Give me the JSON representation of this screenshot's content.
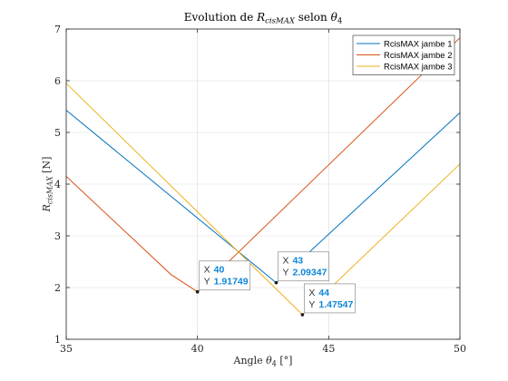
{
  "chart_data": {
    "type": "line",
    "title": "Evolution de R_cisMAX selon θ4",
    "title_parts": {
      "pre": "Evolution de ",
      "var": "R",
      "sub": "cisMAX",
      "mid": " selon ",
      "theta": "θ",
      "theta_sub": "4"
    },
    "xlabel": "Angle θ4 [°]",
    "xlabel_parts": {
      "pre": "Angle ",
      "theta": "θ",
      "sub": "4",
      "post": " [°]"
    },
    "ylabel": "R_cisMAX [N]",
    "ylabel_parts": {
      "var": "R",
      "sub": "cisMAX",
      "post": " [N]"
    },
    "xlim": [
      35,
      50
    ],
    "ylim": [
      1,
      7
    ],
    "xticks": [
      35,
      40,
      45,
      50
    ],
    "yticks": [
      1,
      2,
      3,
      4,
      5,
      6,
      7
    ],
    "grid": true,
    "legend_position": "top-right",
    "series": [
      {
        "name": "RcisMAX jambe 1",
        "color": "#0072BD",
        "x": [
          35,
          43,
          50
        ],
        "y": [
          5.43,
          2.09347,
          5.38
        ]
      },
      {
        "name": "RcisMAX jambe 2",
        "color": "#D95319",
        "x": [
          35,
          39,
          40,
          50
        ],
        "y": [
          4.15,
          2.25,
          1.91749,
          6.83
        ]
      },
      {
        "name": "RcisMAX jambe 3",
        "color": "#EDB120",
        "x": [
          35,
          44,
          50
        ],
        "y": [
          5.95,
          1.47547,
          4.39
        ]
      }
    ],
    "datatips": [
      {
        "x_label": "X",
        "y_label": "Y",
        "x": 40,
        "y": 1.91749,
        "x_text": "40",
        "y_text": "1.91749"
      },
      {
        "x_label": "X",
        "y_label": "Y",
        "x": 43,
        "y": 2.09347,
        "x_text": "43",
        "y_text": "2.09347"
      },
      {
        "x_label": "X",
        "y_label": "Y",
        "x": 44,
        "y": 1.47547,
        "x_text": "44",
        "y_text": "1.47547"
      }
    ]
  }
}
